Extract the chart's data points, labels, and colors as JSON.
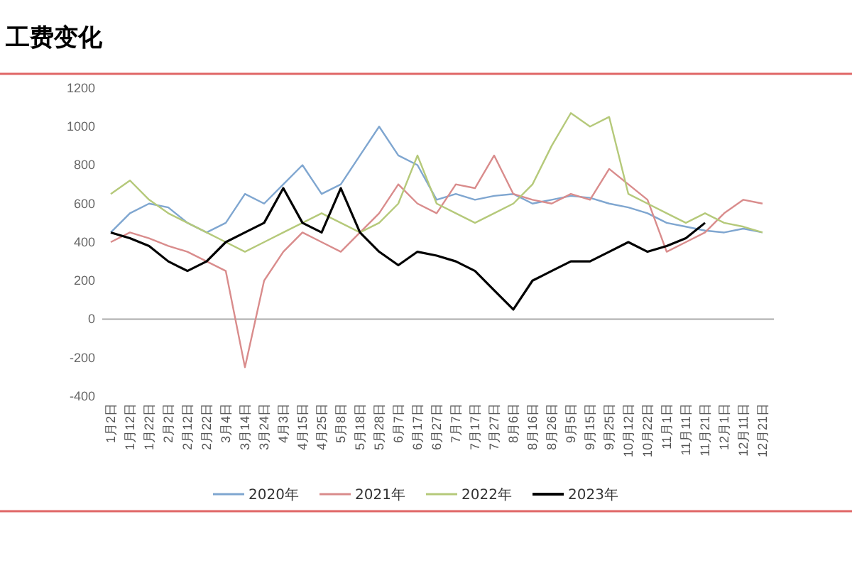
{
  "chart_data": {
    "type": "line",
    "title": "工费变化",
    "categories": [
      "1月2日",
      "1月12日",
      "1月22日",
      "2月2日",
      "2月12日",
      "2月22日",
      "3月4日",
      "3月14日",
      "3月24日",
      "4月3日",
      "4月15日",
      "4月25日",
      "5月8日",
      "5月18日",
      "5月28日",
      "6月7日",
      "6月17日",
      "6月27日",
      "7月7日",
      "7月17日",
      "7月27日",
      "8月6日",
      "8月16日",
      "8月26日",
      "9月5日",
      "9月15日",
      "9月25日",
      "10月12日",
      "10月22日",
      "11月1日",
      "11月11日",
      "11月21日",
      "12月1日",
      "12月11日",
      "12月21日"
    ],
    "series": [
      {
        "name": "2020年",
        "color": "#7fa6d0",
        "values": [
          450,
          550,
          600,
          580,
          500,
          450,
          500,
          650,
          600,
          700,
          800,
          650,
          700,
          850,
          1000,
          850,
          800,
          620,
          650,
          620,
          640,
          650,
          600,
          620,
          640,
          630,
          600,
          580,
          550,
          500,
          480,
          460,
          450,
          470,
          450
        ]
      },
      {
        "name": "2021年",
        "color": "#d98c8c",
        "values": [
          400,
          450,
          420,
          380,
          350,
          300,
          250,
          -250,
          200,
          350,
          450,
          400,
          350,
          450,
          550,
          700,
          600,
          550,
          700,
          680,
          850,
          650,
          620,
          600,
          650,
          620,
          780,
          700,
          620,
          350,
          400,
          450,
          550,
          620,
          600
        ]
      },
      {
        "name": "2022年",
        "color": "#b5c97a",
        "values": [
          650,
          720,
          620,
          550,
          500,
          450,
          400,
          350,
          400,
          450,
          500,
          550,
          500,
          450,
          500,
          600,
          850,
          600,
          550,
          500,
          550,
          600,
          700,
          900,
          1070,
          1000,
          1050,
          650,
          600,
          550,
          500,
          550,
          500,
          480,
          450
        ]
      },
      {
        "name": "2023年",
        "color": "#000000",
        "values": [
          450,
          420,
          380,
          300,
          250,
          300,
          400,
          450,
          500,
          680,
          500,
          450,
          680,
          450,
          350,
          280,
          350,
          330,
          300,
          250,
          150,
          50,
          200,
          250,
          300,
          300,
          350,
          400,
          350,
          380,
          420,
          500,
          null,
          null,
          null
        ]
      }
    ],
    "ylim": [
      -400,
      1200
    ],
    "yticks": [
      -400,
      -200,
      0,
      200,
      400,
      600,
      800,
      1000,
      1200
    ],
    "legend": "bottom",
    "marker": "none",
    "line_style": "solid"
  }
}
